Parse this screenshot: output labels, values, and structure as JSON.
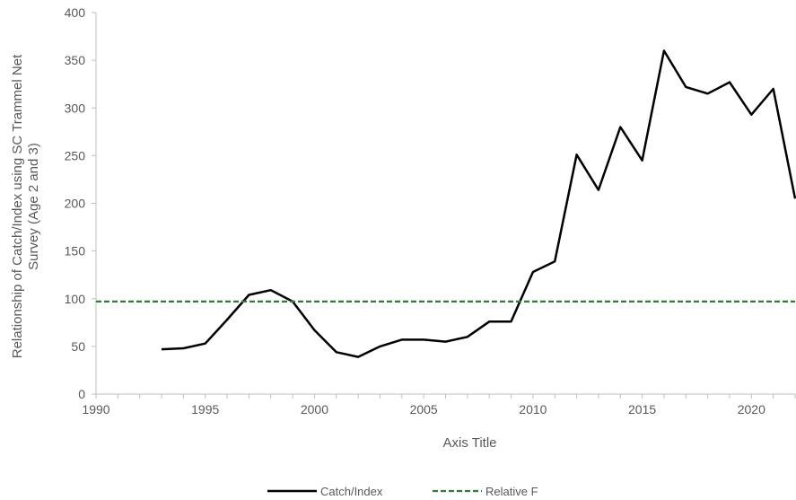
{
  "chart_data": {
    "type": "line",
    "title": "",
    "xlabel": "Axis Title",
    "ylabel": "Relationship of Catch/Index using SC Trammel Net Survey (Age 2 and 3)",
    "ylabel_lines": [
      "Relationship of Catch/Index using SC Trammel Net",
      "Survey (Age 2 and 3)"
    ],
    "xlim": [
      1990,
      2022
    ],
    "ylim": [
      0,
      400
    ],
    "xticks": [
      1990,
      1995,
      2000,
      2005,
      2010,
      2015,
      2020
    ],
    "yticks": [
      0,
      50,
      100,
      150,
      200,
      250,
      300,
      350,
      400
    ],
    "grid": false,
    "legend_position": "bottom",
    "series": [
      {
        "name": "Catch/Index",
        "style": "solid",
        "color": "#000000",
        "x": [
          1993,
          1994,
          1995,
          1996,
          1997,
          1998,
          1999,
          2000,
          2001,
          2002,
          2003,
          2004,
          2005,
          2006,
          2007,
          2008,
          2009,
          2010,
          2011,
          2012,
          2013,
          2014,
          2015,
          2016,
          2017,
          2018,
          2019,
          2020,
          2021,
          2022
        ],
        "y": [
          47,
          48,
          53,
          78,
          104,
          109,
          97,
          67,
          44,
          39,
          50,
          57,
          57,
          55,
          60,
          76,
          76,
          128,
          139,
          251,
          214,
          280,
          245,
          360,
          322,
          315,
          327,
          293,
          320,
          205
        ]
      },
      {
        "name": "Relative F",
        "style": "dashed",
        "color": "#2e7d32",
        "x": [
          1990,
          2022
        ],
        "y": [
          97,
          97
        ]
      }
    ]
  }
}
